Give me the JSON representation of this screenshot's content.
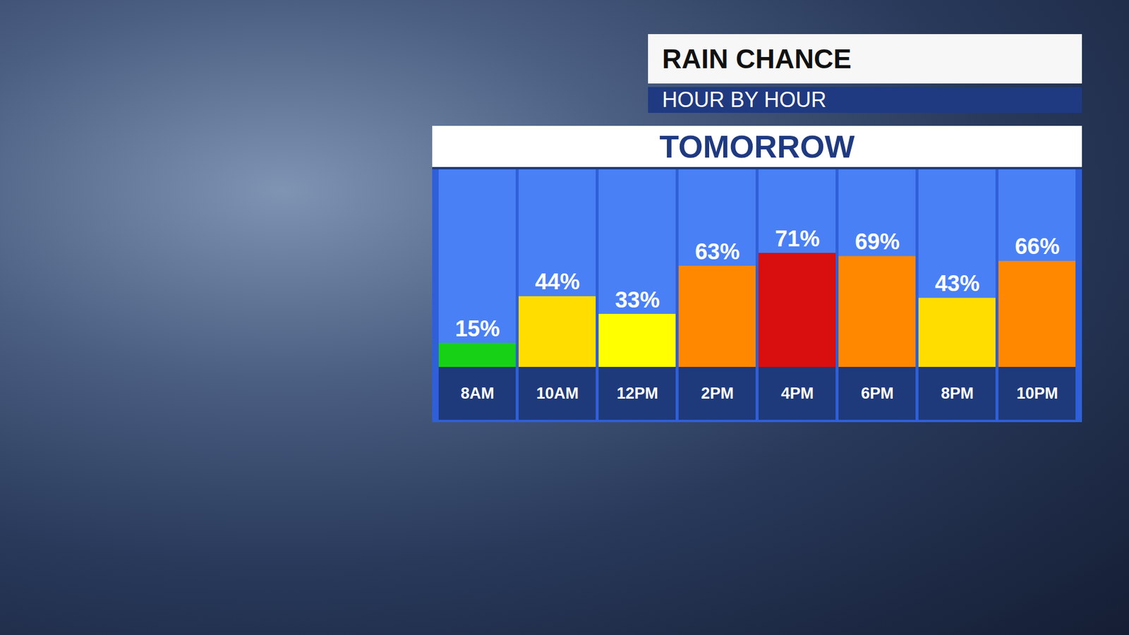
{
  "chart_data": {
    "type": "bar",
    "title": "RAIN CHANCE",
    "subtitle": "HOUR BY HOUR",
    "annotations": [
      "TOMORROW"
    ],
    "categories": [
      "8AM",
      "10AM",
      "12PM",
      "2PM",
      "4PM",
      "6PM",
      "8PM",
      "10PM"
    ],
    "values": [
      15,
      44,
      33,
      63,
      71,
      69,
      43,
      66
    ],
    "value_labels": [
      "15%",
      "44%",
      "33%",
      "63%",
      "71%",
      "69%",
      "43%",
      "66%"
    ],
    "colors": [
      "#17d117",
      "#ffdd00",
      "#ffff00",
      "#ff8800",
      "#d90e0e",
      "#ff8800",
      "#ffdd00",
      "#ff8800"
    ],
    "ylim": [
      0,
      123
    ],
    "data_labels": true,
    "tick_labels": false,
    "grid": false
  }
}
